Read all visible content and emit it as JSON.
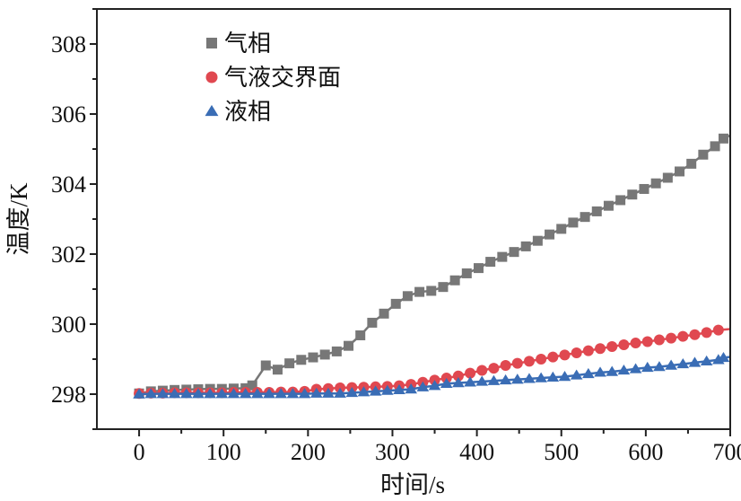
{
  "chart_data": {
    "type": "line",
    "xlabel": "时间/s",
    "ylabel": "温度/K",
    "xlim": [
      -50,
      700
    ],
    "ylim": [
      297,
      309
    ],
    "x_ticks": [
      0,
      100,
      200,
      300,
      400,
      500,
      600,
      700
    ],
    "y_ticks": [
      298,
      300,
      302,
      304,
      306,
      308
    ],
    "legend_position": "top-left",
    "series": [
      {
        "name": "气相",
        "marker": "square",
        "color": "#777777",
        "x": [
          0,
          14,
          28,
          42,
          56,
          70,
          84,
          98,
          112,
          126,
          134,
          150,
          164,
          178,
          192,
          206,
          220,
          234,
          248,
          262,
          276,
          290,
          304,
          318,
          332,
          346,
          360,
          374,
          388,
          402,
          416,
          430,
          444,
          458,
          472,
          486,
          500,
          514,
          528,
          542,
          556,
          570,
          584,
          598,
          612,
          626,
          640,
          654,
          668,
          682,
          692
        ],
        "y": [
          298.02,
          298.08,
          298.1,
          298.12,
          298.13,
          298.14,
          298.15,
          298.15,
          298.16,
          298.17,
          298.25,
          298.82,
          298.7,
          298.88,
          298.98,
          299.05,
          299.13,
          299.22,
          299.38,
          299.68,
          300.04,
          300.3,
          300.58,
          300.8,
          300.92,
          300.95,
          301.06,
          301.25,
          301.45,
          301.6,
          301.78,
          301.92,
          302.06,
          302.22,
          302.38,
          302.56,
          302.72,
          302.9,
          303.06,
          303.22,
          303.38,
          303.54,
          303.7,
          303.86,
          304.02,
          304.18,
          304.36,
          304.58,
          304.84,
          305.08,
          305.3
        ]
      },
      {
        "name": "气液交界面",
        "marker": "circle",
        "color": "#e04850",
        "x": [
          0,
          14,
          28,
          42,
          56,
          70,
          84,
          98,
          112,
          126,
          140,
          154,
          168,
          182,
          196,
          210,
          224,
          238,
          252,
          266,
          280,
          294,
          308,
          322,
          336,
          350,
          364,
          378,
          392,
          406,
          420,
          434,
          448,
          462,
          476,
          490,
          504,
          518,
          532,
          546,
          560,
          574,
          588,
          602,
          616,
          630,
          644,
          658,
          672,
          686
        ],
        "y": [
          298.02,
          298.03,
          298.03,
          298.04,
          298.04,
          298.04,
          298.04,
          298.04,
          298.05,
          298.05,
          298.05,
          298.05,
          298.06,
          298.06,
          298.08,
          298.14,
          298.16,
          298.18,
          298.19,
          298.2,
          298.21,
          298.22,
          298.24,
          298.28,
          298.34,
          298.4,
          298.46,
          298.52,
          298.6,
          298.68,
          298.74,
          298.82,
          298.88,
          298.94,
          299.0,
          299.06,
          299.12,
          299.18,
          299.24,
          299.3,
          299.36,
          299.41,
          299.46,
          299.5,
          299.55,
          299.6,
          299.65,
          299.7,
          299.76,
          299.83
        ]
      },
      {
        "name": "液相",
        "marker": "triangle",
        "color": "#3a6db5",
        "x": [
          0,
          14,
          28,
          42,
          56,
          70,
          84,
          98,
          112,
          126,
          140,
          154,
          168,
          182,
          196,
          210,
          224,
          238,
          252,
          266,
          280,
          294,
          308,
          322,
          336,
          350,
          364,
          378,
          392,
          406,
          420,
          434,
          448,
          462,
          476,
          490,
          504,
          518,
          532,
          546,
          560,
          574,
          588,
          602,
          616,
          630,
          644,
          658,
          672,
          686,
          692
        ],
        "y": [
          298.0,
          298.01,
          298.01,
          298.01,
          298.01,
          298.01,
          298.01,
          298.01,
          298.01,
          298.01,
          298.01,
          298.01,
          298.01,
          298.01,
          298.01,
          298.02,
          298.02,
          298.02,
          298.04,
          298.06,
          298.08,
          298.1,
          298.12,
          298.14,
          298.2,
          298.24,
          298.3,
          298.32,
          298.34,
          298.36,
          298.38,
          298.4,
          298.42,
          298.44,
          298.46,
          298.48,
          298.5,
          298.54,
          298.58,
          298.62,
          298.64,
          298.68,
          298.72,
          298.76,
          298.78,
          298.82,
          298.86,
          298.9,
          298.94,
          298.98,
          299.04
        ]
      }
    ]
  }
}
